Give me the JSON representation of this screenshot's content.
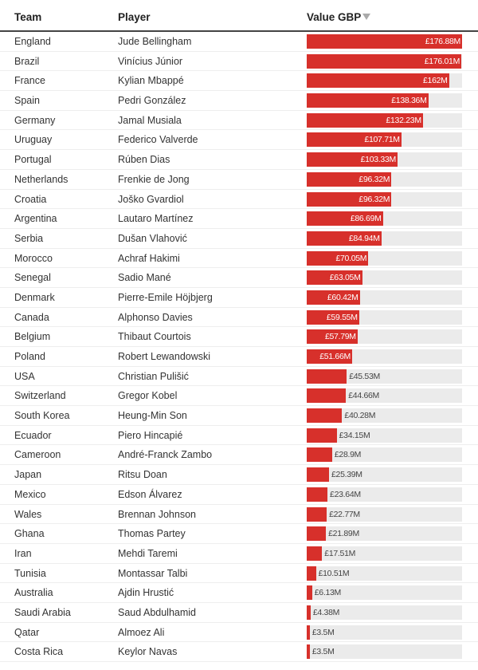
{
  "header": {
    "team": "Team",
    "player": "Player",
    "value": "Value GBP"
  },
  "colors": {
    "bar": "#d7302b",
    "track": "#ebebeb"
  },
  "chart_data": {
    "type": "table",
    "columns": [
      "Team",
      "Player",
      "Value GBP"
    ],
    "xlim": [
      0,
      176.88
    ],
    "rows": [
      {
        "team": "England",
        "player": "Jude Bellingham",
        "value": 176.88,
        "label": "£176.88M"
      },
      {
        "team": "Brazil",
        "player": "Vinícius Júnior",
        "value": 176.01,
        "label": "£176.01M"
      },
      {
        "team": "France",
        "player": "Kylian Mbappé",
        "value": 162,
        "label": "£162M"
      },
      {
        "team": "Spain",
        "player": "Pedri González",
        "value": 138.36,
        "label": "£138.36M"
      },
      {
        "team": "Germany",
        "player": "Jamal Musiala",
        "value": 132.23,
        "label": "£132.23M"
      },
      {
        "team": "Uruguay",
        "player": "Federico Valverde",
        "value": 107.71,
        "label": "£107.71M"
      },
      {
        "team": "Portugal",
        "player": "Rúben Dias",
        "value": 103.33,
        "label": "£103.33M"
      },
      {
        "team": "Netherlands",
        "player": "Frenkie de Jong",
        "value": 96.32,
        "label": "£96.32M"
      },
      {
        "team": "Croatia",
        "player": "Joško Gvardiol",
        "value": 96.32,
        "label": "£96.32M"
      },
      {
        "team": "Argentina",
        "player": "Lautaro Martínez",
        "value": 86.69,
        "label": "£86.69M"
      },
      {
        "team": "Serbia",
        "player": "Dušan Vlahović",
        "value": 84.94,
        "label": "£84.94M"
      },
      {
        "team": "Morocco",
        "player": "Achraf Hakimi",
        "value": 70.05,
        "label": "£70.05M"
      },
      {
        "team": "Senegal",
        "player": "Sadio Mané",
        "value": 63.05,
        "label": "£63.05M"
      },
      {
        "team": "Denmark",
        "player": "Pierre-Emile Höjbjerg",
        "value": 60.42,
        "label": "£60.42M"
      },
      {
        "team": "Canada",
        "player": "Alphonso Davies",
        "value": 59.55,
        "label": "£59.55M"
      },
      {
        "team": "Belgium",
        "player": "Thibaut Courtois",
        "value": 57.79,
        "label": "£57.79M"
      },
      {
        "team": "Poland",
        "player": "Robert Lewandowski",
        "value": 51.66,
        "label": "£51.66M"
      },
      {
        "team": "USA",
        "player": "Christian Pulišić",
        "value": 45.53,
        "label": "£45.53M"
      },
      {
        "team": "Switzerland",
        "player": "Gregor Kobel",
        "value": 44.66,
        "label": "£44.66M"
      },
      {
        "team": "South Korea",
        "player": "Heung-Min Son",
        "value": 40.28,
        "label": "£40.28M"
      },
      {
        "team": "Ecuador",
        "player": "Piero Hincapié",
        "value": 34.15,
        "label": "£34.15M"
      },
      {
        "team": "Cameroon",
        "player": "André-Franck Zambo",
        "value": 28.9,
        "label": "£28.9M"
      },
      {
        "team": "Japan",
        "player": "Ritsu Doan",
        "value": 25.39,
        "label": "£25.39M"
      },
      {
        "team": "Mexico",
        "player": "Edson Álvarez",
        "value": 23.64,
        "label": "£23.64M"
      },
      {
        "team": "Wales",
        "player": "Brennan Johnson",
        "value": 22.77,
        "label": "£22.77M"
      },
      {
        "team": "Ghana",
        "player": "Thomas Partey",
        "value": 21.89,
        "label": "£21.89M"
      },
      {
        "team": "Iran",
        "player": "Mehdi Taremi",
        "value": 17.51,
        "label": "£17.51M"
      },
      {
        "team": "Tunisia",
        "player": "Montassar Talbi",
        "value": 10.51,
        "label": "£10.51M"
      },
      {
        "team": "Australia",
        "player": "Ajdin Hrustić",
        "value": 6.13,
        "label": "£6.13M"
      },
      {
        "team": "Saudi Arabia",
        "player": "Saud Abdulhamid",
        "value": 4.38,
        "label": "£4.38M"
      },
      {
        "team": "Qatar",
        "player": "Almoez Ali",
        "value": 3.5,
        "label": "£3.5M"
      },
      {
        "team": "Costa Rica",
        "player": "Keylor Navas",
        "value": 3.5,
        "label": "£3.5M"
      }
    ]
  }
}
